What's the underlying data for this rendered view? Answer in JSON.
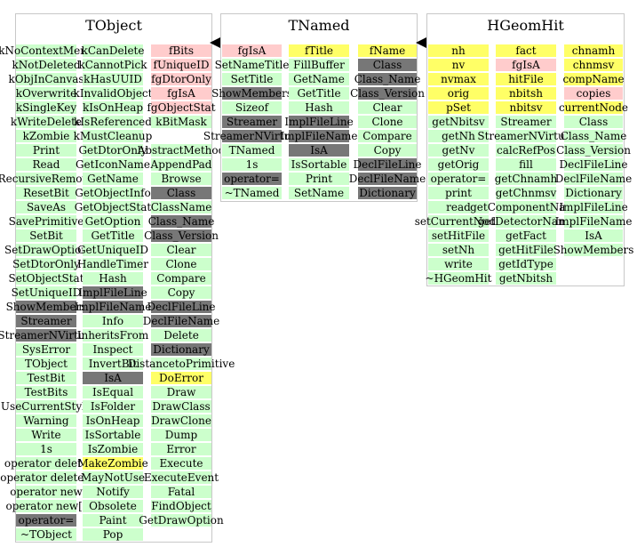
{
  "classes": [
    {
      "name": "TObject",
      "columns": [
        [
          {
            "t": "kNoContextMenu",
            "c": "g"
          },
          {
            "t": "kNotDeleted",
            "c": "g"
          },
          {
            "t": "kObjInCanvas",
            "c": "g"
          },
          {
            "t": "kOverwrite",
            "c": "g"
          },
          {
            "t": "kSingleKey",
            "c": "g"
          },
          {
            "t": "kWriteDelete",
            "c": "g"
          },
          {
            "t": "kZombie",
            "c": "g"
          },
          {
            "t": "Print",
            "c": "g"
          },
          {
            "t": "Read",
            "c": "g"
          },
          {
            "t": "RecursiveRemove",
            "c": "g"
          },
          {
            "t": "ResetBit",
            "c": "g"
          },
          {
            "t": "SaveAs",
            "c": "g"
          },
          {
            "t": "SavePrimitive",
            "c": "g"
          },
          {
            "t": "SetBit",
            "c": "g"
          },
          {
            "t": "SetDrawOption",
            "c": "g"
          },
          {
            "t": "SetDtorOnly",
            "c": "g"
          },
          {
            "t": "SetObjectStat",
            "c": "g"
          },
          {
            "t": "SetUniqueID",
            "c": "g"
          },
          {
            "t": "ShowMembers",
            "c": "d"
          },
          {
            "t": "Streamer",
            "c": "d"
          },
          {
            "t": "StreamerNVirtual",
            "c": "d"
          },
          {
            "t": "SysError",
            "c": "g"
          },
          {
            "t": "TObject",
            "c": "g"
          },
          {
            "t": "TestBit",
            "c": "g"
          },
          {
            "t": "TestBits",
            "c": "g"
          },
          {
            "t": "UseCurrentStyle",
            "c": "g"
          },
          {
            "t": "Warning",
            "c": "g"
          },
          {
            "t": "Write",
            "c": "g"
          },
          {
            "t": "1s",
            "c": "g"
          },
          {
            "t": "operator delete",
            "c": "g"
          },
          {
            "t": "operator delete[]",
            "c": "g"
          },
          {
            "t": "operator new",
            "c": "g"
          },
          {
            "t": "operator new[]",
            "c": "g"
          },
          {
            "t": "operator=",
            "c": "d"
          },
          {
            "t": "~TObject",
            "c": "g"
          }
        ],
        [
          {
            "t": "kCanDelete",
            "c": "g"
          },
          {
            "t": "kCannotPick",
            "c": "g"
          },
          {
            "t": "kHasUUID",
            "c": "g"
          },
          {
            "t": "kInvalidObject",
            "c": "g"
          },
          {
            "t": "kIsOnHeap",
            "c": "g"
          },
          {
            "t": "kIsReferenced",
            "c": "g"
          },
          {
            "t": "kMustCleanup",
            "c": "g"
          },
          {
            "t": "GetDtorOnly",
            "c": "g"
          },
          {
            "t": "GetIconName",
            "c": "g"
          },
          {
            "t": "GetName",
            "c": "g"
          },
          {
            "t": "GetObjectInfo",
            "c": "g"
          },
          {
            "t": "GetObjectStat",
            "c": "g"
          },
          {
            "t": "GetOption",
            "c": "g"
          },
          {
            "t": "GetTitle",
            "c": "g"
          },
          {
            "t": "GetUniqueID",
            "c": "g"
          },
          {
            "t": "HandleTimer",
            "c": "g"
          },
          {
            "t": "Hash",
            "c": "g"
          },
          {
            "t": "ImplFileLine",
            "c": "d"
          },
          {
            "t": "ImplFileName",
            "c": "d"
          },
          {
            "t": "Info",
            "c": "g"
          },
          {
            "t": "InheritsFrom",
            "c": "g"
          },
          {
            "t": "Inspect",
            "c": "g"
          },
          {
            "t": "InvertBit",
            "c": "g"
          },
          {
            "t": "IsA",
            "c": "d"
          },
          {
            "t": "IsEqual",
            "c": "g"
          },
          {
            "t": "IsFolder",
            "c": "g"
          },
          {
            "t": "IsOnHeap",
            "c": "g"
          },
          {
            "t": "IsSortable",
            "c": "g"
          },
          {
            "t": "IsZombie",
            "c": "g"
          },
          {
            "t": "MakeZombie",
            "c": "y"
          },
          {
            "t": "MayNotUse",
            "c": "g"
          },
          {
            "t": "Notify",
            "c": "g"
          },
          {
            "t": "Obsolete",
            "c": "g"
          },
          {
            "t": "Paint",
            "c": "g"
          },
          {
            "t": "Pop",
            "c": "g"
          }
        ],
        [
          {
            "t": "fBits",
            "c": "p"
          },
          {
            "t": "fUniqueID",
            "c": "p"
          },
          {
            "t": "fgDtorOnly",
            "c": "p"
          },
          {
            "t": "fgIsA",
            "c": "p"
          },
          {
            "t": "fgObjectStat",
            "c": "p"
          },
          {
            "t": "kBitMask",
            "c": "g"
          },
          {
            "t": "",
            "c": "gap"
          },
          {
            "t": "AbstractMethod",
            "c": "g"
          },
          {
            "t": "AppendPad",
            "c": "g"
          },
          {
            "t": "Browse",
            "c": "g"
          },
          {
            "t": "Class",
            "c": "d"
          },
          {
            "t": "ClassName",
            "c": "g"
          },
          {
            "t": "Class_Name",
            "c": "d"
          },
          {
            "t": "Class_Version",
            "c": "d"
          },
          {
            "t": "Clear",
            "c": "g"
          },
          {
            "t": "Clone",
            "c": "g"
          },
          {
            "t": "Compare",
            "c": "g"
          },
          {
            "t": "Copy",
            "c": "g"
          },
          {
            "t": "DeclFileLine",
            "c": "d"
          },
          {
            "t": "DeclFileName",
            "c": "d"
          },
          {
            "t": "Delete",
            "c": "g"
          },
          {
            "t": "Dictionary",
            "c": "d"
          },
          {
            "t": "DistancetoPrimitive",
            "c": "g"
          },
          {
            "t": "DoError",
            "c": "y"
          },
          {
            "t": "Draw",
            "c": "g"
          },
          {
            "t": "DrawClass",
            "c": "g"
          },
          {
            "t": "DrawClone",
            "c": "g"
          },
          {
            "t": "Dump",
            "c": "g"
          },
          {
            "t": "Error",
            "c": "g"
          },
          {
            "t": "Execute",
            "c": "g"
          },
          {
            "t": "ExecuteEvent",
            "c": "g"
          },
          {
            "t": "Fatal",
            "c": "g"
          },
          {
            "t": "FindObject",
            "c": "g"
          },
          {
            "t": "GetDrawOption",
            "c": "g"
          }
        ]
      ]
    },
    {
      "name": "TNamed",
      "columns": [
        [
          {
            "t": "fgIsA",
            "c": "p"
          },
          {
            "t": "SetNameTitle",
            "c": "g"
          },
          {
            "t": "SetTitle",
            "c": "g"
          },
          {
            "t": "ShowMembers",
            "c": "d"
          },
          {
            "t": "Sizeof",
            "c": "g"
          },
          {
            "t": "Streamer",
            "c": "d"
          },
          {
            "t": "StreamerNVirtual",
            "c": "d"
          },
          {
            "t": "TNamed",
            "c": "g"
          },
          {
            "t": "1s",
            "c": "g"
          },
          {
            "t": "operator=",
            "c": "d"
          },
          {
            "t": "~TNamed",
            "c": "g"
          }
        ],
        [
          {
            "t": "fTitle",
            "c": "y"
          },
          {
            "t": "FillBuffer",
            "c": "g"
          },
          {
            "t": "GetName",
            "c": "g"
          },
          {
            "t": "GetTitle",
            "c": "g"
          },
          {
            "t": "Hash",
            "c": "g"
          },
          {
            "t": "ImplFileLine",
            "c": "d"
          },
          {
            "t": "ImplFileName",
            "c": "d"
          },
          {
            "t": "IsA",
            "c": "d"
          },
          {
            "t": "IsSortable",
            "c": "g"
          },
          {
            "t": "Print",
            "c": "g"
          },
          {
            "t": "SetName",
            "c": "g"
          }
        ],
        [
          {
            "t": "fName",
            "c": "y"
          },
          {
            "t": "Class",
            "c": "d"
          },
          {
            "t": "Class_Name",
            "c": "d"
          },
          {
            "t": "Class_Version",
            "c": "d"
          },
          {
            "t": "Clear",
            "c": "g"
          },
          {
            "t": "Clone",
            "c": "g"
          },
          {
            "t": "Compare",
            "c": "g"
          },
          {
            "t": "Copy",
            "c": "g"
          },
          {
            "t": "DeclFileLine",
            "c": "d"
          },
          {
            "t": "DeclFileName",
            "c": "d"
          },
          {
            "t": "Dictionary",
            "c": "d"
          }
        ]
      ]
    },
    {
      "name": "HGeomHit",
      "columns": [
        [
          {
            "t": "nh",
            "c": "y"
          },
          {
            "t": "nv",
            "c": "y"
          },
          {
            "t": "nvmax",
            "c": "y"
          },
          {
            "t": "orig",
            "c": "y"
          },
          {
            "t": "pSet",
            "c": "y"
          },
          {
            "t": "getNbitsv",
            "c": "g"
          },
          {
            "t": "getNh",
            "c": "g"
          },
          {
            "t": "getNv",
            "c": "g"
          },
          {
            "t": "getOrig",
            "c": "g"
          },
          {
            "t": "operator=",
            "c": "g"
          },
          {
            "t": "print",
            "c": "g"
          },
          {
            "t": "read",
            "c": "g"
          },
          {
            "t": "setCurrentNode",
            "c": "g"
          },
          {
            "t": "setHitFile",
            "c": "g"
          },
          {
            "t": "setNh",
            "c": "g"
          },
          {
            "t": "write",
            "c": "g"
          },
          {
            "t": "~HGeomHit",
            "c": "g"
          }
        ],
        [
          {
            "t": "fact",
            "c": "y"
          },
          {
            "t": "fgIsA",
            "c": "p"
          },
          {
            "t": "hitFile",
            "c": "y"
          },
          {
            "t": "nbitsh",
            "c": "y"
          },
          {
            "t": "nbitsv",
            "c": "y"
          },
          {
            "t": "Streamer",
            "c": "g"
          },
          {
            "t": "StreamerNVirtual",
            "c": "g"
          },
          {
            "t": "calcRefPos",
            "c": "g"
          },
          {
            "t": "fill",
            "c": "g"
          },
          {
            "t": "getChnamh",
            "c": "g"
          },
          {
            "t": "getChnmsv",
            "c": "g"
          },
          {
            "t": "getComponentName",
            "c": "g"
          },
          {
            "t": "getDetectorName",
            "c": "g"
          },
          {
            "t": "getFact",
            "c": "g"
          },
          {
            "t": "getHitFile",
            "c": "g"
          },
          {
            "t": "getIdType",
            "c": "g"
          },
          {
            "t": "getNbitsh",
            "c": "g"
          }
        ],
        [
          {
            "t": "chnamh",
            "c": "y"
          },
          {
            "t": "chnmsv",
            "c": "y"
          },
          {
            "t": "compName",
            "c": "y"
          },
          {
            "t": "copies",
            "c": "p"
          },
          {
            "t": "currentNode",
            "c": "y"
          },
          {
            "t": "Class",
            "c": "g"
          },
          {
            "t": "Class_Name",
            "c": "g"
          },
          {
            "t": "Class_Version",
            "c": "g"
          },
          {
            "t": "DeclFileLine",
            "c": "g"
          },
          {
            "t": "DeclFileName",
            "c": "g"
          },
          {
            "t": "Dictionary",
            "c": "g"
          },
          {
            "t": "ImplFileLine",
            "c": "g"
          },
          {
            "t": "ImplFileName",
            "c": "g"
          },
          {
            "t": "IsA",
            "c": "g"
          },
          {
            "t": "ShowMembers",
            "c": "g"
          }
        ]
      ]
    }
  ]
}
